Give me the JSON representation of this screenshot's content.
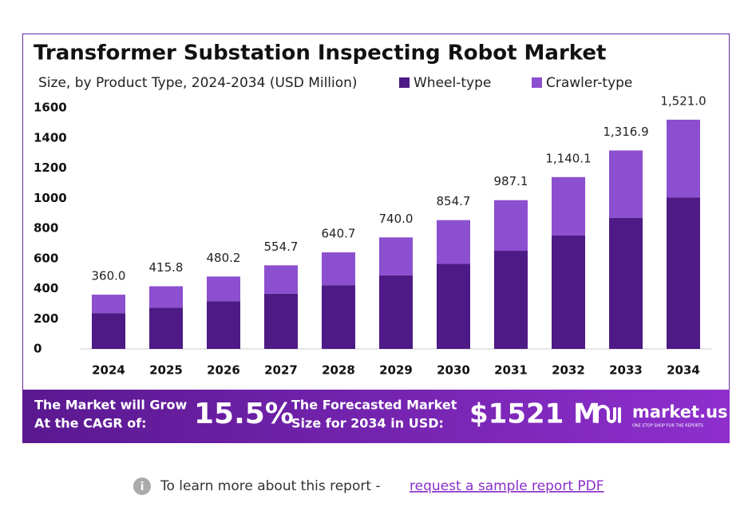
{
  "chart_data": {
    "type": "stacked_bar",
    "title": "Transformer Substation Inspecting Robot Market",
    "subtitle": "Size, by Product Type, 2024-2034 (USD Million)",
    "categories": [
      "2024",
      "2025",
      "2026",
      "2027",
      "2028",
      "2029",
      "2030",
      "2031",
      "2032",
      "2033",
      "2034"
    ],
    "series": [
      {
        "name": "Wheel-type",
        "color": "#4e1a86",
        "values": [
          237.6,
          274.4,
          316.9,
          366.1,
          422.9,
          488.4,
          564.1,
          651.5,
          752.5,
          869.2,
          1003.9
        ]
      },
      {
        "name": "Crawler-type",
        "color": "#8c4fcf",
        "values": [
          122.4,
          141.4,
          163.3,
          188.6,
          217.8,
          251.6,
          290.6,
          335.6,
          387.6,
          447.7,
          517.1
        ]
      }
    ],
    "totals": [
      360,
      415.8,
      480.2,
      554.7,
      640.7,
      740,
      854.7,
      987.1,
      1140.1,
      1316.9,
      1521
    ],
    "total_labels": [
      "360.0",
      "415.8",
      "480.2",
      "554.7",
      "640.7",
      "740.0",
      "854.7",
      "987.1",
      "1,140.1",
      "1,316.9",
      "1,521.0"
    ],
    "ylim": [
      0,
      1600
    ],
    "yticks": [
      0,
      200,
      400,
      600,
      800,
      1000,
      1200,
      1400,
      1600
    ],
    "grid": false
  },
  "banner": {
    "cagr_text": [
      "The Market will Grow",
      "At the CAGR of:"
    ],
    "cagr": "15.5%",
    "forecast_text": [
      "The Forecasted Market",
      "Size for 2034 in USD:"
    ],
    "forecast": "$1521 M",
    "brand": "market.us",
    "tagline": "ONE STOP SHOP FOR THE REPORTS"
  },
  "footer": {
    "text": "To learn more about this report -",
    "link": "request a sample report PDF"
  }
}
